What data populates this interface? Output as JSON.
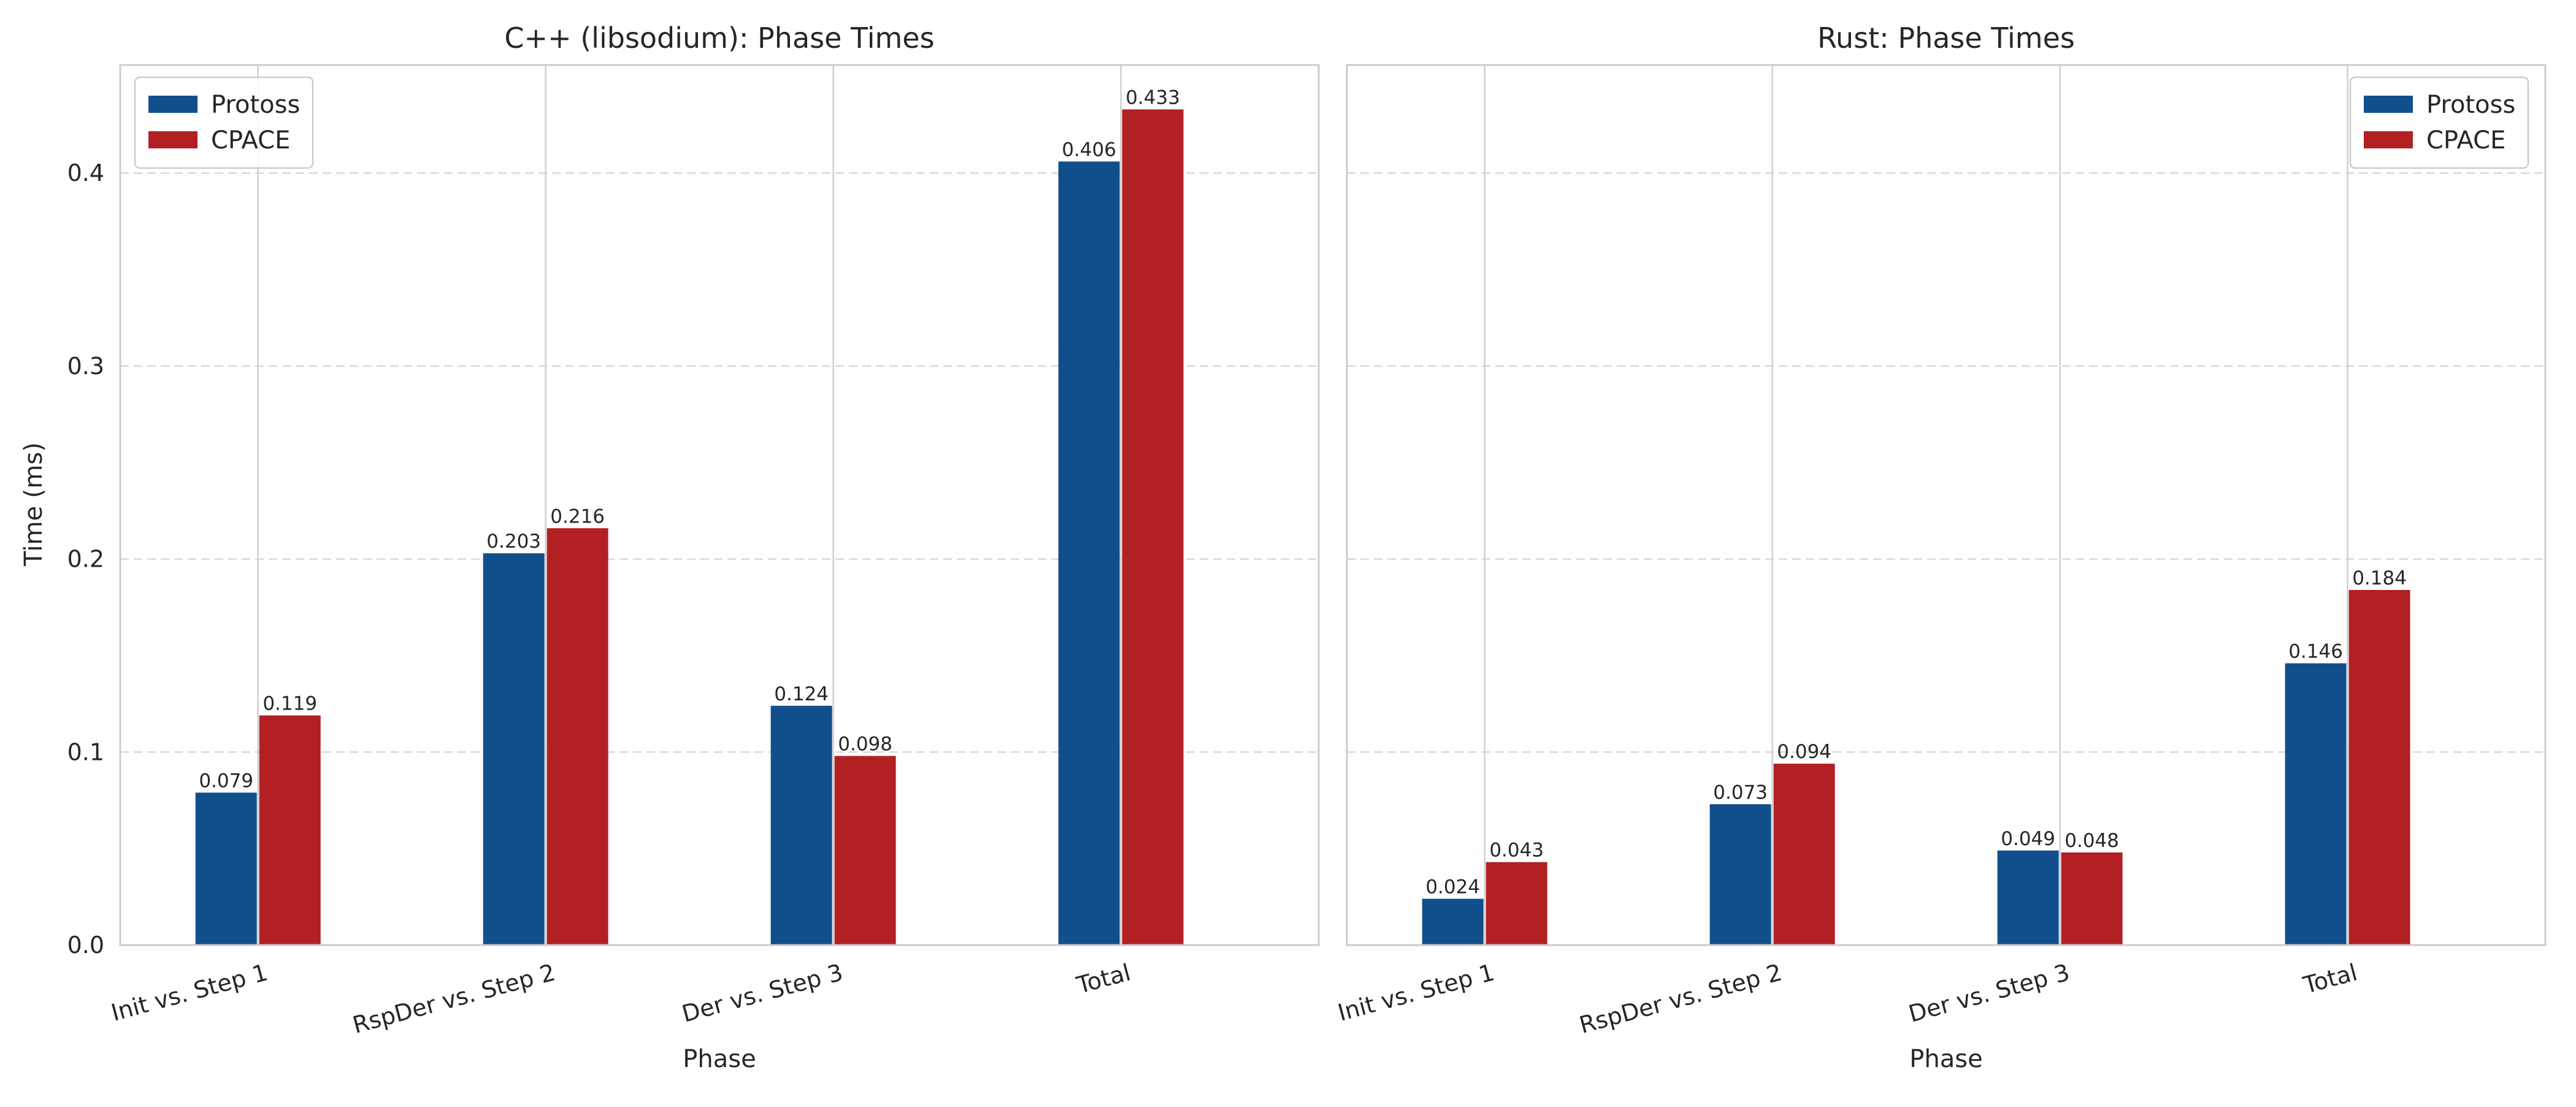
{
  "figure": {
    "shared_ylabel": "Time (ms)"
  },
  "chart_data": [
    {
      "type": "bar",
      "title": "C++ (libsodium): Phase Times",
      "xlabel": "Phase",
      "ylabel": "Time (ms)",
      "ylim": [
        0,
        0.456
      ],
      "yticks": [
        0.0,
        0.1,
        0.2,
        0.3,
        0.4
      ],
      "ytick_labels": [
        "0.0",
        "0.1",
        "0.2",
        "0.3",
        "0.4"
      ],
      "grid": true,
      "legend_position": "top-left",
      "categories": [
        "Init vs. Step 1",
        "RspDer vs. Step 2",
        "Der vs. Step 3",
        "Total"
      ],
      "series": [
        {
          "name": "Protoss",
          "color": "#114f8c",
          "values": [
            0.079,
            0.203,
            0.124,
            0.406
          ],
          "labels": [
            "0.079",
            "0.203",
            "0.124",
            "0.406"
          ]
        },
        {
          "name": "CPACE",
          "color": "#b22024",
          "values": [
            0.119,
            0.216,
            0.098,
            0.433
          ],
          "labels": [
            "0.119",
            "0.216",
            "0.098",
            "0.433"
          ]
        }
      ]
    },
    {
      "type": "bar",
      "title": "Rust: Phase Times",
      "xlabel": "Phase",
      "ylabel": "",
      "ylim": [
        0,
        0.456
      ],
      "yticks": [
        0.0,
        0.1,
        0.2,
        0.3,
        0.4
      ],
      "ytick_labels": [],
      "grid": true,
      "legend_position": "top-right",
      "categories": [
        "Init vs. Step 1",
        "RspDer vs. Step 2",
        "Der vs. Step 3",
        "Total"
      ],
      "series": [
        {
          "name": "Protoss",
          "color": "#114f8c",
          "values": [
            0.024,
            0.073,
            0.049,
            0.146
          ],
          "labels": [
            "0.024",
            "0.073",
            "0.049",
            "0.146"
          ]
        },
        {
          "name": "CPACE",
          "color": "#b22024",
          "values": [
            0.043,
            0.094,
            0.048,
            0.184
          ],
          "labels": [
            "0.043",
            "0.094",
            "0.048",
            "0.184"
          ]
        }
      ]
    }
  ]
}
